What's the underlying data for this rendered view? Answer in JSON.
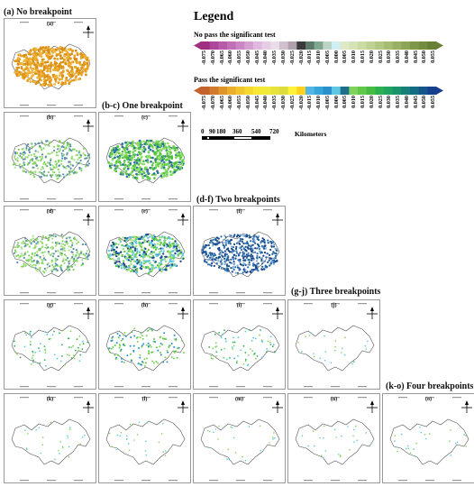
{
  "headings": {
    "a": "(a) No breakpoint",
    "bc": "(b-c) One breakpoint",
    "df": "(d-f) Two breakpoints",
    "gj": "(g-j) Three breakpoints",
    "ko": "(k-o) Four breakpoints"
  },
  "legend": {
    "title": "Legend",
    "no_pass_label": "No pass the significant test",
    "pass_label": "Pass the significant test",
    "no_pass_ticks": [
      "-0.075",
      "-0.070",
      "-0.065",
      "-0.060",
      "-0.055",
      "-0.050",
      "-0.045",
      "-0.040",
      "-0.035",
      "-0.030",
      "-0.025",
      "-0.020",
      "-0.015",
      "-0.010",
      "-0.005",
      "0.000",
      "0.005",
      "0.010",
      "0.015",
      "0.020",
      "0.025",
      "0.030",
      "0.035",
      "0.040",
      "0.045",
      "0.050",
      "0.055"
    ],
    "pass_ticks": [
      "-0.075",
      "-0.070",
      "-0.065",
      "-0.060",
      "-0.055",
      "-0.050",
      "-0.045",
      "-0.040",
      "-0.035",
      "-0.030",
      "-0.025",
      "-0.020",
      "-0.015",
      "-0.010",
      "-0.005",
      "0.000",
      "0.005",
      "0.010",
      "0.015",
      "0.020",
      "0.025",
      "0.030",
      "0.035",
      "0.040",
      "0.045",
      "0.050",
      "0.055"
    ],
    "no_pass_colors": [
      "#a0307f",
      "#ad479b",
      "#b75aa8",
      "#c16fb6",
      "#cb87c4",
      "#d5a0d1",
      "#dfb9de",
      "#e6cde6",
      "#e9dde8",
      "#cfc0cc",
      "#b0a0ad",
      "#3a3a3a",
      "#5b7a6a",
      "#82a78f",
      "#bcd4c6",
      "#cfeff5",
      "#dfe9c6",
      "#d6e3b6",
      "#cbdba4",
      "#bfd193",
      "#b3c783",
      "#a6bc73",
      "#98b064",
      "#8ba457",
      "#7e984b",
      "#728c40",
      "#677f36"
    ],
    "pass_colors": [
      "#c4622e",
      "#d27a2c",
      "#df942b",
      "#eaae2a",
      "#f1c52c",
      "#f5d930",
      "#f8e733",
      "#f2ea3a",
      "#e8e33c",
      "#dddc3a",
      "#fff23a",
      "#ffd21e",
      "#50b7e6",
      "#36a6d9",
      "#2a8fca",
      "#5ec7e3",
      "#1f6e8a",
      "#7fd35a",
      "#62c84a",
      "#45bd44",
      "#2fb050",
      "#20a35e",
      "#1a936a",
      "#167f78",
      "#146c82",
      "#14568a",
      "#173f8c"
    ],
    "scale_numbers": [
      "0",
      "90",
      "180",
      "360",
      "540",
      "720"
    ],
    "scale_unit": "Kilometers"
  },
  "panels": [
    {
      "label": "(a)",
      "fill": "orange"
    },
    {
      "label": "(b)",
      "fill": "green-light"
    },
    {
      "label": "(c)",
      "fill": "green"
    },
    {
      "label": "(d)",
      "fill": "green-light"
    },
    {
      "label": "(e)",
      "fill": "green-mixed"
    },
    {
      "label": "(f)",
      "fill": "blue-dark"
    },
    {
      "label": "(g)",
      "fill": "sparse"
    },
    {
      "label": "(h)",
      "fill": "sparse-medium"
    },
    {
      "label": "(i)",
      "fill": "sparse"
    },
    {
      "label": "(j)",
      "fill": "very-sparse"
    },
    {
      "label": "(k)",
      "fill": "very-sparse"
    },
    {
      "label": "(l)",
      "fill": "very-sparse"
    },
    {
      "label": "(m)",
      "fill": "very-sparse"
    },
    {
      "label": "(n)",
      "fill": "very-sparse"
    },
    {
      "label": "(o)",
      "fill": "very-sparse"
    }
  ],
  "colors": {
    "orange": "#e8a020",
    "green": "#6bd24a",
    "blue": "#1d4e8f",
    "cyan": "#5ec7e3",
    "outline": "#555555"
  }
}
